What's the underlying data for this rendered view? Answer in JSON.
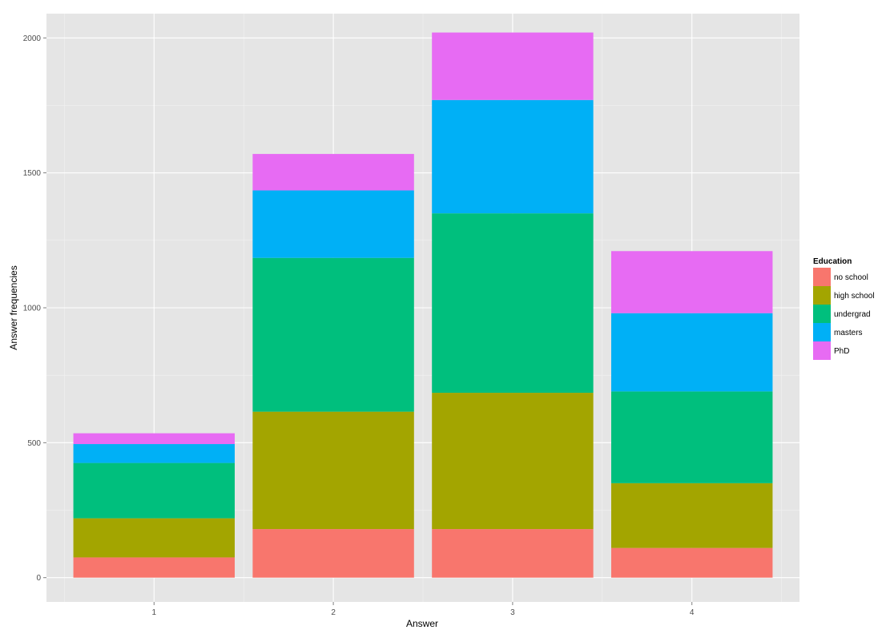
{
  "chart_data": {
    "type": "bar",
    "stacked": true,
    "categories": [
      "1",
      "2",
      "3",
      "4"
    ],
    "xlabel": "Answer",
    "ylabel": "Answer frequencies",
    "ylim": [
      -90,
      2090
    ],
    "yticks": [
      0,
      500,
      1000,
      1500,
      2000
    ],
    "grid": true,
    "background": "#E5E5E5",
    "legend": {
      "title": "Education",
      "placement": "right"
    },
    "series": [
      {
        "name": "no school",
        "color": "#F8766D",
        "values": [
          75,
          180,
          180,
          110
        ]
      },
      {
        "name": "high school",
        "color": "#A3A500",
        "values": [
          145,
          435,
          505,
          240
        ]
      },
      {
        "name": "undergrad",
        "color": "#00BF7D",
        "values": [
          205,
          570,
          665,
          340
        ]
      },
      {
        "name": "masters",
        "color": "#00B0F6",
        "values": [
          70,
          250,
          420,
          290
        ]
      },
      {
        "name": "PhD",
        "color": "#E76BF3",
        "values": [
          40,
          135,
          250,
          230
        ]
      }
    ]
  }
}
